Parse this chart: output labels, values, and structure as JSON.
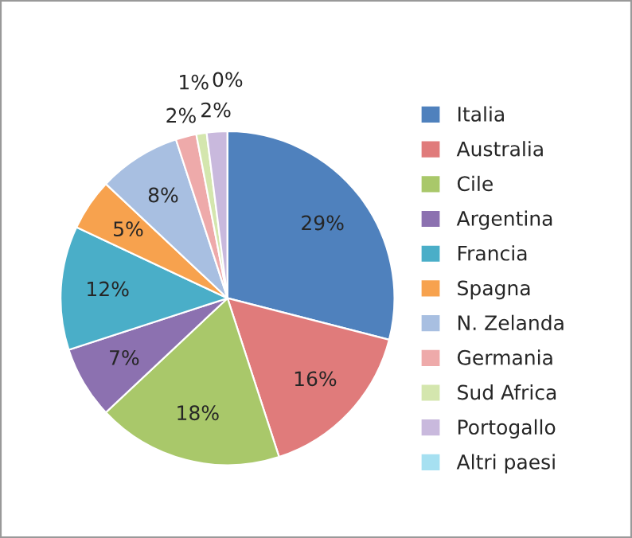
{
  "chart_data": {
    "type": "pie",
    "categories": [
      "Italia",
      "Australia",
      "Cile",
      "Argentina",
      "Francia",
      "Spagna",
      "N. Zelanda",
      "Germania",
      "Sud Africa",
      "Portogallo",
      "Altri paesi"
    ],
    "values": [
      29,
      16,
      18,
      7,
      12,
      5,
      8,
      2,
      1,
      2,
      0
    ],
    "colors": [
      "#4f81bd",
      "#e07b7b",
      "#a9c86a",
      "#8c71b0",
      "#4aaec8",
      "#f7a24e",
      "#a8bfe1",
      "#eeaaaa",
      "#d4e6ae",
      "#c9b9dd",
      "#a6e0f1"
    ],
    "value_labels": [
      "29%",
      "16%",
      "18%",
      "7%",
      "12%",
      "5%",
      "8%",
      "2%",
      "1%",
      "2%",
      "0%"
    ],
    "legend": "right"
  }
}
